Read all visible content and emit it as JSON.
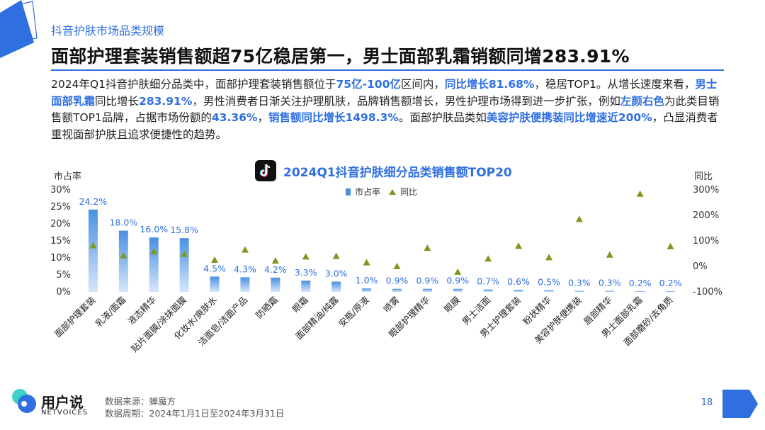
{
  "header": {
    "subtitle": "抖音护肤市场品类规模",
    "headline": "面部护理套装销售额超75亿稳居第一，男士面部乳霜销额同增283.91%"
  },
  "paragraph": {
    "p1": "2024年Q1抖音护肤细分品类中，面部护理套装销售额位于",
    "h1": "75亿-100亿",
    "p2": "区间内，",
    "h2": "同比增长81.68%",
    "p3": "，稳居TOP1。从增长速度来看，",
    "h3": "男士面部乳霜",
    "p4": "同比增长",
    "h4": "283.91%",
    "p5": "，男性消费者日渐关注护理肌肤，品牌销售额增长，男性护理市场得到进一步扩张，例如",
    "h5": "左颜右色",
    "p6": "为此类目销售额TOP1品牌，占据市场份额的",
    "h6": "43.36%",
    "p7": "，",
    "h7": "销售额同比增长1498.3%",
    "p8": "。面部护肤品类如",
    "h8": "美容护肤便携装同比增速近200%",
    "p9": "，凸显消费者重视面部护肤且追求便捷性的趋势。"
  },
  "chart_data": {
    "type": "bar",
    "title": "2024Q1抖音护肤细分品类销售额TOP20",
    "ylabel_left": "市占率",
    "ylabel_right": "同比",
    "yticks_left": [
      "30%",
      "25%",
      "20%",
      "15%",
      "10%",
      "5%",
      "0%"
    ],
    "yticks_right": [
      "300%",
      "200%",
      "100%",
      "0%",
      "-100%"
    ],
    "ylim_left": [
      0,
      30
    ],
    "ylim_right": [
      -100,
      300
    ],
    "legend": [
      "市占率",
      "同比"
    ],
    "legend_position": "top-center",
    "categories": [
      "面部护理套装",
      "乳液/面霜",
      "液态精华",
      "贴片面膜/涂抹面膜",
      "化妆水/爽肤水",
      "洁面皂/洁面产品",
      "防晒霜",
      "眼霜",
      "面部精油/纯露",
      "安瓶/原液",
      "喷雾",
      "眼部护理精华",
      "眼膜",
      "男士洁面",
      "男士护理套装",
      "粉状精华",
      "美容护肤便携装",
      "唇部精华",
      "男士面部乳霜",
      "面部磨砂/去角质"
    ],
    "series": [
      {
        "name": "市占率",
        "unit": "%",
        "values": [
          24.2,
          18.0,
          16.0,
          15.8,
          4.5,
          4.3,
          4.2,
          3.3,
          3.0,
          1.0,
          0.9,
          0.9,
          0.9,
          0.7,
          0.6,
          0.5,
          0.3,
          0.3,
          0.2,
          0.2
        ],
        "labels": [
          "24.2%",
          "18.0%",
          "16.0%",
          "15.8%",
          "4.5%",
          "4.3%",
          "4.2%",
          "3.3%",
          "3.0%",
          "1.0%",
          "0.9%",
          "0.9%",
          "0.9%",
          "0.7%",
          "0.6%",
          "0.5%",
          "0.3%",
          "0.3%",
          "0.2%",
          "0.2%"
        ]
      },
      {
        "name": "同比",
        "unit": "%",
        "values": [
          82,
          42,
          58,
          48,
          25,
          65,
          22,
          38,
          40,
          15,
          0,
          72,
          -22,
          30,
          80,
          35,
          185,
          45,
          284,
          78
        ]
      }
    ],
    "colors": {
      "bar": "#4a90e2",
      "triangle": "#7a9a1f",
      "label": "#2f6fe0"
    }
  },
  "footer": {
    "source": "数据来源：蝉魔方",
    "period": "数据周期：2024年1月1日至2024年3月31日",
    "logo_cn": "用户说",
    "logo_en": "NETVOICES",
    "page": "18"
  }
}
